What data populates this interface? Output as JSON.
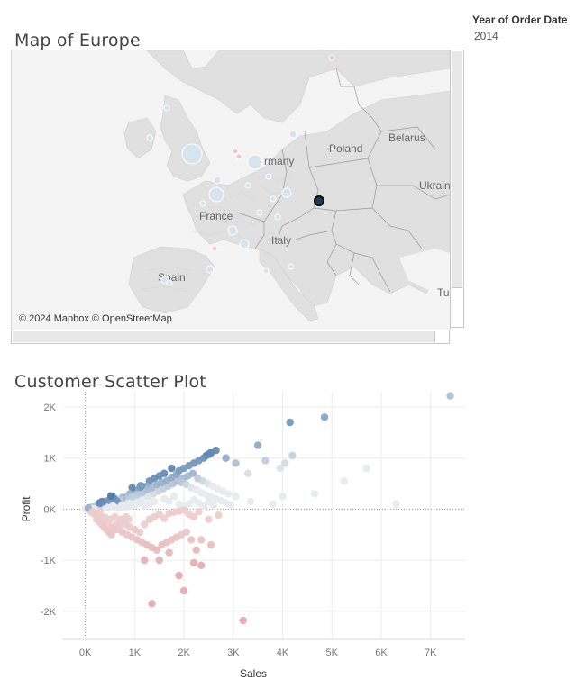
{
  "map": {
    "title": "Map of Europe",
    "attribution": "© 2024 Mapbox © OpenStreetMap",
    "labels": [
      {
        "name": "poland",
        "text": "Poland"
      },
      {
        "name": "belarus",
        "text": "Belarus"
      },
      {
        "name": "ukraine",
        "text": "Ukrain"
      },
      {
        "name": "germany",
        "text": "rmany"
      },
      {
        "name": "france",
        "text": "France"
      },
      {
        "name": "italy",
        "text": "Italy"
      },
      {
        "name": "spain",
        "text": "Spain"
      },
      {
        "name": "turkey",
        "text": "Tu"
      }
    ]
  },
  "filter": {
    "label": "Year of Order Date",
    "value": "2014"
  },
  "scatter": {
    "title": "Customer Scatter Plot"
  },
  "colors": {
    "positive": "#4e79a7",
    "negative": "#d98a8a",
    "neutral": "#e6e9ee",
    "map_land": "#e0e0e0",
    "map_water": "#f4f4f4"
  },
  "chart_data": {
    "type": "scatter",
    "title": "Customer Scatter Plot",
    "xlabel": "Sales",
    "ylabel": "Profit",
    "xlim": [
      -450,
      7700
    ],
    "ylim": [
      -2550,
      2300
    ],
    "xticks": [
      0,
      1000,
      2000,
      3000,
      4000,
      5000,
      6000,
      7000
    ],
    "xtick_labels": [
      "0K",
      "1K",
      "2K",
      "3K",
      "4K",
      "5K",
      "6K",
      "7K"
    ],
    "yticks": [
      2000,
      1000,
      0,
      -1000,
      -2000
    ],
    "ytick_labels": [
      "2K",
      "1K",
      "0K",
      "-1K",
      "-2K"
    ],
    "grid": true,
    "color_encoding": "profit",
    "points": [
      [
        7400,
        2220
      ],
      [
        4850,
        1800
      ],
      [
        4150,
        1700
      ],
      [
        3500,
        1250
      ],
      [
        4200,
        1050
      ],
      [
        4050,
        900
      ],
      [
        3950,
        800
      ],
      [
        3650,
        950
      ],
      [
        5700,
        800
      ],
      [
        5250,
        550
      ],
      [
        6300,
        100
      ],
      [
        4650,
        300
      ],
      [
        4000,
        250
      ],
      [
        3800,
        100
      ],
      [
        3350,
        150
      ],
      [
        3050,
        250
      ],
      [
        3300,
        700
      ],
      [
        3050,
        900
      ],
      [
        2850,
        1000
      ],
      [
        2650,
        1150
      ],
      [
        2550,
        1100
      ],
      [
        2450,
        1050
      ],
      [
        2400,
        1000
      ],
      [
        2300,
        950
      ],
      [
        2200,
        900
      ],
      [
        2100,
        850
      ],
      [
        2000,
        800
      ],
      [
        1900,
        750
      ],
      [
        1750,
        800
      ],
      [
        1600,
        700
      ],
      [
        1500,
        650
      ],
      [
        1400,
        600
      ],
      [
        1300,
        550
      ],
      [
        1250,
        450
      ],
      [
        1150,
        450
      ],
      [
        1100,
        400
      ],
      [
        1000,
        350
      ],
      [
        950,
        420
      ],
      [
        900,
        300
      ],
      [
        850,
        250
      ],
      [
        800,
        200
      ],
      [
        750,
        230
      ],
      [
        700,
        180
      ],
      [
        650,
        150
      ],
      [
        600,
        200
      ],
      [
        550,
        220
      ],
      [
        500,
        180
      ],
      [
        450,
        160
      ],
      [
        400,
        120
      ],
      [
        350,
        100
      ],
      [
        300,
        80
      ],
      [
        250,
        60
      ],
      [
        200,
        50
      ],
      [
        150,
        40
      ],
      [
        100,
        30
      ],
      [
        50,
        20
      ],
      [
        0,
        10
      ],
      [
        30,
        0
      ],
      [
        80,
        -20
      ],
      [
        130,
        10
      ],
      [
        180,
        0
      ],
      [
        260,
        30
      ],
      [
        320,
        -10
      ],
      [
        420,
        40
      ],
      [
        560,
        60
      ],
      [
        620,
        20
      ],
      [
        740,
        80
      ],
      [
        860,
        100
      ],
      [
        980,
        150
      ],
      [
        1080,
        180
      ],
      [
        1180,
        200
      ],
      [
        1280,
        250
      ],
      [
        1380,
        300
      ],
      [
        1480,
        350
      ],
      [
        1580,
        400
      ],
      [
        1680,
        450
      ],
      [
        1780,
        500
      ],
      [
        1880,
        550
      ],
      [
        1980,
        600
      ],
      [
        2080,
        650
      ],
      [
        2180,
        700
      ],
      [
        2280,
        600
      ],
      [
        2380,
        550
      ],
      [
        2480,
        500
      ],
      [
        2580,
        450
      ],
      [
        2680,
        400
      ],
      [
        2780,
        350
      ],
      [
        2900,
        300
      ],
      [
        1600,
        200
      ],
      [
        1700,
        150
      ],
      [
        1800,
        250
      ],
      [
        1900,
        100
      ],
      [
        2000,
        50
      ],
      [
        2100,
        100
      ],
      [
        2200,
        180
      ],
      [
        2300,
        120
      ],
      [
        2400,
        60
      ],
      [
        2500,
        150
      ],
      [
        2600,
        80
      ],
      [
        1550,
        520
      ],
      [
        1650,
        560
      ],
      [
        1450,
        480
      ],
      [
        1350,
        420
      ],
      [
        1250,
        380
      ],
      [
        1150,
        320
      ],
      [
        1050,
        280
      ],
      [
        950,
        240
      ],
      [
        1750,
        620
      ],
      [
        1850,
        680
      ],
      [
        1950,
        520
      ],
      [
        2050,
        480
      ],
      [
        2150,
        420
      ],
      [
        2250,
        380
      ],
      [
        2350,
        320
      ],
      [
        2450,
        280
      ],
      [
        2550,
        240
      ],
      [
        2650,
        200
      ],
      [
        2750,
        160
      ],
      [
        2850,
        120
      ],
      [
        2950,
        80
      ],
      [
        1400,
        150
      ],
      [
        1300,
        100
      ],
      [
        1200,
        60
      ],
      [
        1100,
        120
      ],
      [
        1000,
        80
      ],
      [
        900,
        50
      ],
      [
        800,
        40
      ],
      [
        700,
        30
      ],
      [
        2480,
        1060
      ],
      [
        2520,
        1080
      ],
      [
        2530,
        1100
      ],
      [
        1110,
        430
      ],
      [
        1120,
        460
      ],
      [
        1130,
        440
      ],
      [
        550,
        250
      ],
      [
        560,
        230
      ],
      [
        520,
        260
      ],
      [
        360,
        140
      ],
      [
        340,
        150
      ],
      [
        300,
        110
      ],
      [
        280,
        120
      ],
      [
        100,
        0
      ],
      [
        120,
        -60
      ],
      [
        60,
        20
      ],
      [
        200,
        -80
      ],
      [
        300,
        -120
      ],
      [
        400,
        -160
      ],
      [
        500,
        -200
      ],
      [
        600,
        -150
      ],
      [
        700,
        -250
      ],
      [
        800,
        -300
      ],
      [
        900,
        -350
      ],
      [
        1000,
        -400
      ],
      [
        1100,
        -450
      ],
      [
        1200,
        -300
      ],
      [
        1300,
        -200
      ],
      [
        1400,
        -150
      ],
      [
        1500,
        -100
      ],
      [
        1600,
        -180
      ],
      [
        1700,
        -80
      ],
      [
        1800,
        -60
      ],
      [
        1900,
        -40
      ],
      [
        2000,
        -20
      ],
      [
        2100,
        -100
      ],
      [
        2200,
        -150
      ],
      [
        2300,
        -50
      ],
      [
        2500,
        -200
      ],
      [
        2700,
        -120
      ],
      [
        250,
        -150
      ],
      [
        350,
        -250
      ],
      [
        450,
        -300
      ],
      [
        550,
        -350
      ],
      [
        650,
        -400
      ],
      [
        750,
        -450
      ],
      [
        850,
        -500
      ],
      [
        950,
        -550
      ],
      [
        1050,
        -600
      ],
      [
        1150,
        -650
      ],
      [
        1250,
        -700
      ],
      [
        1350,
        -750
      ],
      [
        1450,
        -800
      ],
      [
        1550,
        -700
      ],
      [
        1650,
        -650
      ],
      [
        1750,
        -600
      ],
      [
        1850,
        -550
      ],
      [
        1950,
        -500
      ],
      [
        2050,
        -450
      ],
      [
        2150,
        -600
      ],
      [
        2250,
        -800
      ],
      [
        2350,
        -600
      ],
      [
        2550,
        -700
      ],
      [
        1700,
        -850
      ],
      [
        1200,
        -1000
      ],
      [
        1500,
        -1000
      ],
      [
        1900,
        -1300
      ],
      [
        2200,
        -1050
      ],
      [
        2350,
        -1100
      ],
      [
        2000,
        -1600
      ],
      [
        1350,
        -1850
      ],
      [
        3200,
        -2180
      ],
      [
        150,
        -50
      ],
      [
        180,
        -100
      ],
      [
        230,
        -200
      ],
      [
        280,
        -250
      ],
      [
        330,
        -300
      ],
      [
        380,
        -350
      ],
      [
        430,
        -400
      ],
      [
        480,
        -450
      ],
      [
        530,
        -500
      ],
      [
        580,
        -400
      ],
      [
        630,
        -300
      ],
      [
        680,
        -350
      ],
      [
        730,
        -200
      ],
      [
        780,
        -250
      ],
      [
        830,
        -150
      ],
      [
        880,
        -200
      ]
    ]
  }
}
